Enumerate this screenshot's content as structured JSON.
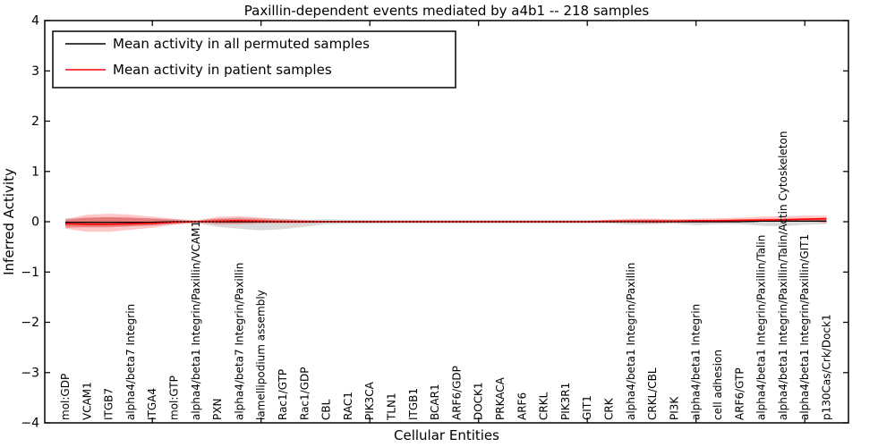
{
  "chart_data": {
    "type": "line",
    "title": "Paxillin-dependent events mediated by a4b1 -- 218 samples",
    "xlabel": "Cellular Entities",
    "ylabel": "Inferred Activity",
    "ylim": [
      -4,
      4
    ],
    "yticks": [
      -4,
      -3,
      -2,
      -1,
      0,
      1,
      2,
      3,
      4
    ],
    "xtick_index_positions": [
      4,
      9,
      14,
      19,
      24,
      29,
      34
    ],
    "grid": false,
    "legend_position": "upper-left",
    "legend": [
      {
        "label": "Mean activity in all permuted samples",
        "color": "#000000"
      },
      {
        "label": "Mean activity in patient samples",
        "color": "#ff0000"
      }
    ],
    "categories": [
      "mol:GDP",
      "VCAM1",
      "ITGB7",
      "alpha4/beta7 Integrin",
      "ITGA4",
      "mol:GTP",
      "alpha4/beta1 Integrin/Paxillin/VCAM1",
      "PXN",
      "alpha4/beta7 Integrin/Paxillin",
      "lamellipodium assembly",
      "Rac1/GTP",
      "Rac1/GDP",
      "CBL",
      "RAC1",
      "PIK3CA",
      "TLN1",
      "ITGB1",
      "BCAR1",
      "ARF6/GDP",
      "DOCK1",
      "PRKACA",
      "ARF6",
      "CRKL",
      "PIK3R1",
      "GIT1",
      "CRK",
      "alpha4/beta1 Integrin/Paxillin",
      "CRKL/CBL",
      "PI3K",
      "alpha4/beta1 Integrin",
      "cell adhesion",
      "ARF6/GTP",
      "alpha4/beta1 Integrin/Paxillin/Talin",
      "alpha4/beta1 Integrin/Paxillin/Talin/Actin Cytoskeleton",
      "alpha4/beta1 Integrin/Paxillin/GIT1",
      "p130Cas/Crk/Dock1"
    ],
    "series": [
      {
        "name": "Mean activity in all permuted samples",
        "color": "#000000",
        "style": "solid-with-dotted-overlay",
        "values": [
          -0.01,
          -0.01,
          -0.01,
          -0.01,
          -0.01,
          0,
          0,
          0,
          0,
          0,
          0,
          0,
          0,
          0,
          0,
          0,
          0,
          0,
          0,
          0,
          0,
          0,
          0,
          0,
          0,
          0,
          0,
          0,
          0,
          0,
          0,
          0,
          0.01,
          0.01,
          0.01,
          0.01
        ]
      },
      {
        "name": "Mean activity in patient samples",
        "color": "#ff0000",
        "style": "solid",
        "values": [
          -0.04,
          -0.05,
          -0.05,
          -0.04,
          -0.03,
          -0.01,
          0,
          0.01,
          0.02,
          0.01,
          0,
          0,
          0,
          0,
          0,
          0,
          0,
          0,
          0,
          0,
          0,
          0,
          0,
          0,
          0,
          0.01,
          0.01,
          0.01,
          0.01,
          0.02,
          0.02,
          0.03,
          0.03,
          0.04,
          0.05,
          0.06
        ]
      }
    ],
    "bands": [
      {
        "name": "permuted-std-band",
        "fill": "rgba(128,128,128,0.30)",
        "upper": [
          0.07,
          0.08,
          0.09,
          0.08,
          0.07,
          0.05,
          0.03,
          0.06,
          0.08,
          0.07,
          0.06,
          0.04,
          0.05,
          0.04,
          0.03,
          0.03,
          0.03,
          0.03,
          0.03,
          0.03,
          0.03,
          0.03,
          0.03,
          0.03,
          0.03,
          0.03,
          0.04,
          0.05,
          0.04,
          0.04,
          0.04,
          0.04,
          0.05,
          0.04,
          0.03,
          0.05
        ],
        "lower": [
          -0.09,
          -0.1,
          -0.1,
          -0.09,
          -0.08,
          -0.05,
          -0.03,
          -0.1,
          -0.14,
          -0.17,
          -0.15,
          -0.1,
          -0.05,
          -0.04,
          -0.04,
          -0.03,
          -0.03,
          -0.03,
          -0.03,
          -0.03,
          -0.03,
          -0.03,
          -0.03,
          -0.03,
          -0.03,
          -0.03,
          -0.06,
          -0.05,
          -0.04,
          -0.07,
          -0.05,
          -0.05,
          -0.08,
          -0.09,
          -0.06,
          -0.05
        ]
      },
      {
        "name": "patient-std-band",
        "fill": "rgba(255,0,0,0.22)",
        "upper": [
          0.05,
          0.14,
          0.16,
          0.14,
          0.1,
          0.06,
          0.02,
          0.1,
          0.11,
          0.08,
          0.05,
          0.03,
          0.02,
          0.02,
          0.02,
          0.02,
          0.02,
          0.02,
          0.02,
          0.02,
          0.02,
          0.02,
          0.02,
          0.02,
          0.02,
          0.04,
          0.06,
          0.06,
          0.05,
          0.06,
          0.07,
          0.08,
          0.1,
          0.11,
          0.12,
          0.12
        ],
        "lower": [
          -0.14,
          -0.2,
          -0.2,
          -0.16,
          -0.12,
          -0.06,
          -0.02,
          -0.05,
          -0.05,
          -0.04,
          -0.03,
          -0.03,
          -0.02,
          -0.02,
          -0.02,
          -0.02,
          -0.02,
          -0.02,
          -0.02,
          -0.02,
          -0.02,
          -0.02,
          -0.02,
          -0.02,
          -0.02,
          -0.02,
          -0.02,
          -0.03,
          -0.02,
          -0.02,
          -0.02,
          -0.01,
          0.0,
          0.0,
          0.01,
          -0.02
        ]
      },
      {
        "name": "patient-inner-band",
        "fill": "rgba(255,0,0,0.28)",
        "upper": [
          0.03,
          0.08,
          0.09,
          0.08,
          0.06,
          0.03,
          0.01,
          0.06,
          0.06,
          0.04,
          0.03,
          0.02,
          0.01,
          0.01,
          0.01,
          0.01,
          0.01,
          0.01,
          0.01,
          0.01,
          0.01,
          0.01,
          0.01,
          0.01,
          0.01,
          0.02,
          0.03,
          0.03,
          0.03,
          0.03,
          0.04,
          0.04,
          0.06,
          0.06,
          0.07,
          0.07
        ],
        "lower": [
          -0.12,
          -0.11,
          -0.11,
          -0.09,
          -0.07,
          -0.03,
          -0.01,
          -0.03,
          -0.03,
          -0.02,
          -0.02,
          -0.02,
          -0.01,
          -0.01,
          -0.01,
          -0.01,
          -0.01,
          -0.01,
          -0.01,
          -0.01,
          -0.01,
          -0.01,
          -0.01,
          -0.01,
          -0.01,
          -0.01,
          -0.01,
          -0.02,
          -0.01,
          -0.01,
          -0.01,
          -0.01,
          0.0,
          0.0,
          0.01,
          -0.01
        ]
      }
    ]
  }
}
